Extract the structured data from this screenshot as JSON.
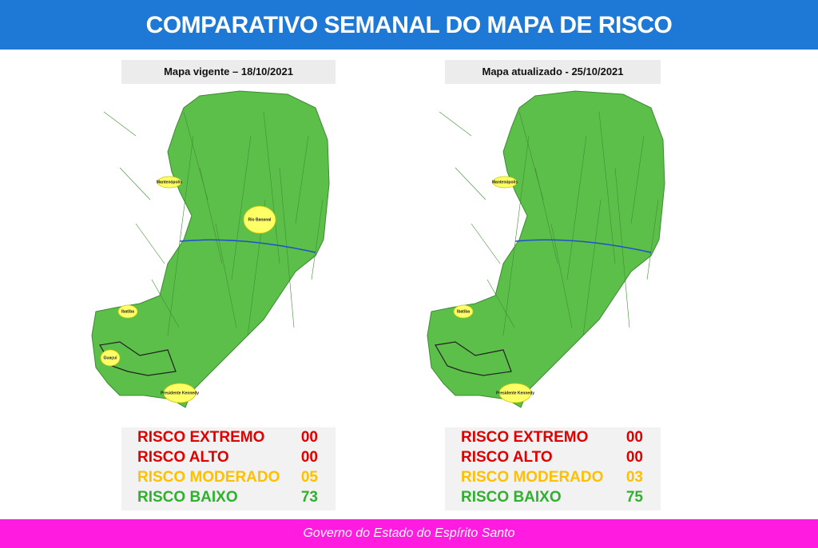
{
  "header": {
    "title": "COMPARATIVO SEMANAL DO MAPA DE RISCO"
  },
  "panels": [
    {
      "subtitle": "Mapa vigente – 18/10/2021",
      "highlighted": [
        "Mantenópolis",
        "Rio Bananal",
        "Ibatiba",
        "Guaçuí",
        "Presidente Kennedy"
      ],
      "risks": [
        {
          "label": "RISCO EXTREMO",
          "count": "00"
        },
        {
          "label": "RISCO ALTO",
          "count": "00"
        },
        {
          "label": "RISCO MODERADO",
          "count": "05"
        },
        {
          "label": "RISCO BAIXO",
          "count": "73"
        }
      ]
    },
    {
      "subtitle": "Mapa atualizado - 25/10/2021",
      "highlighted": [
        "Mantenópolis",
        "Ibatiba",
        "Presidente Kennedy"
      ],
      "risks": [
        {
          "label": "RISCO EXTREMO",
          "count": "00"
        },
        {
          "label": "RISCO ALTO",
          "count": "00"
        },
        {
          "label": "RISCO MODERADO",
          "count": "03"
        },
        {
          "label": "RISCO BAIXO",
          "count": "75"
        }
      ]
    }
  ],
  "footer": {
    "text": "Governo do Estado do Espírito Santo"
  }
}
